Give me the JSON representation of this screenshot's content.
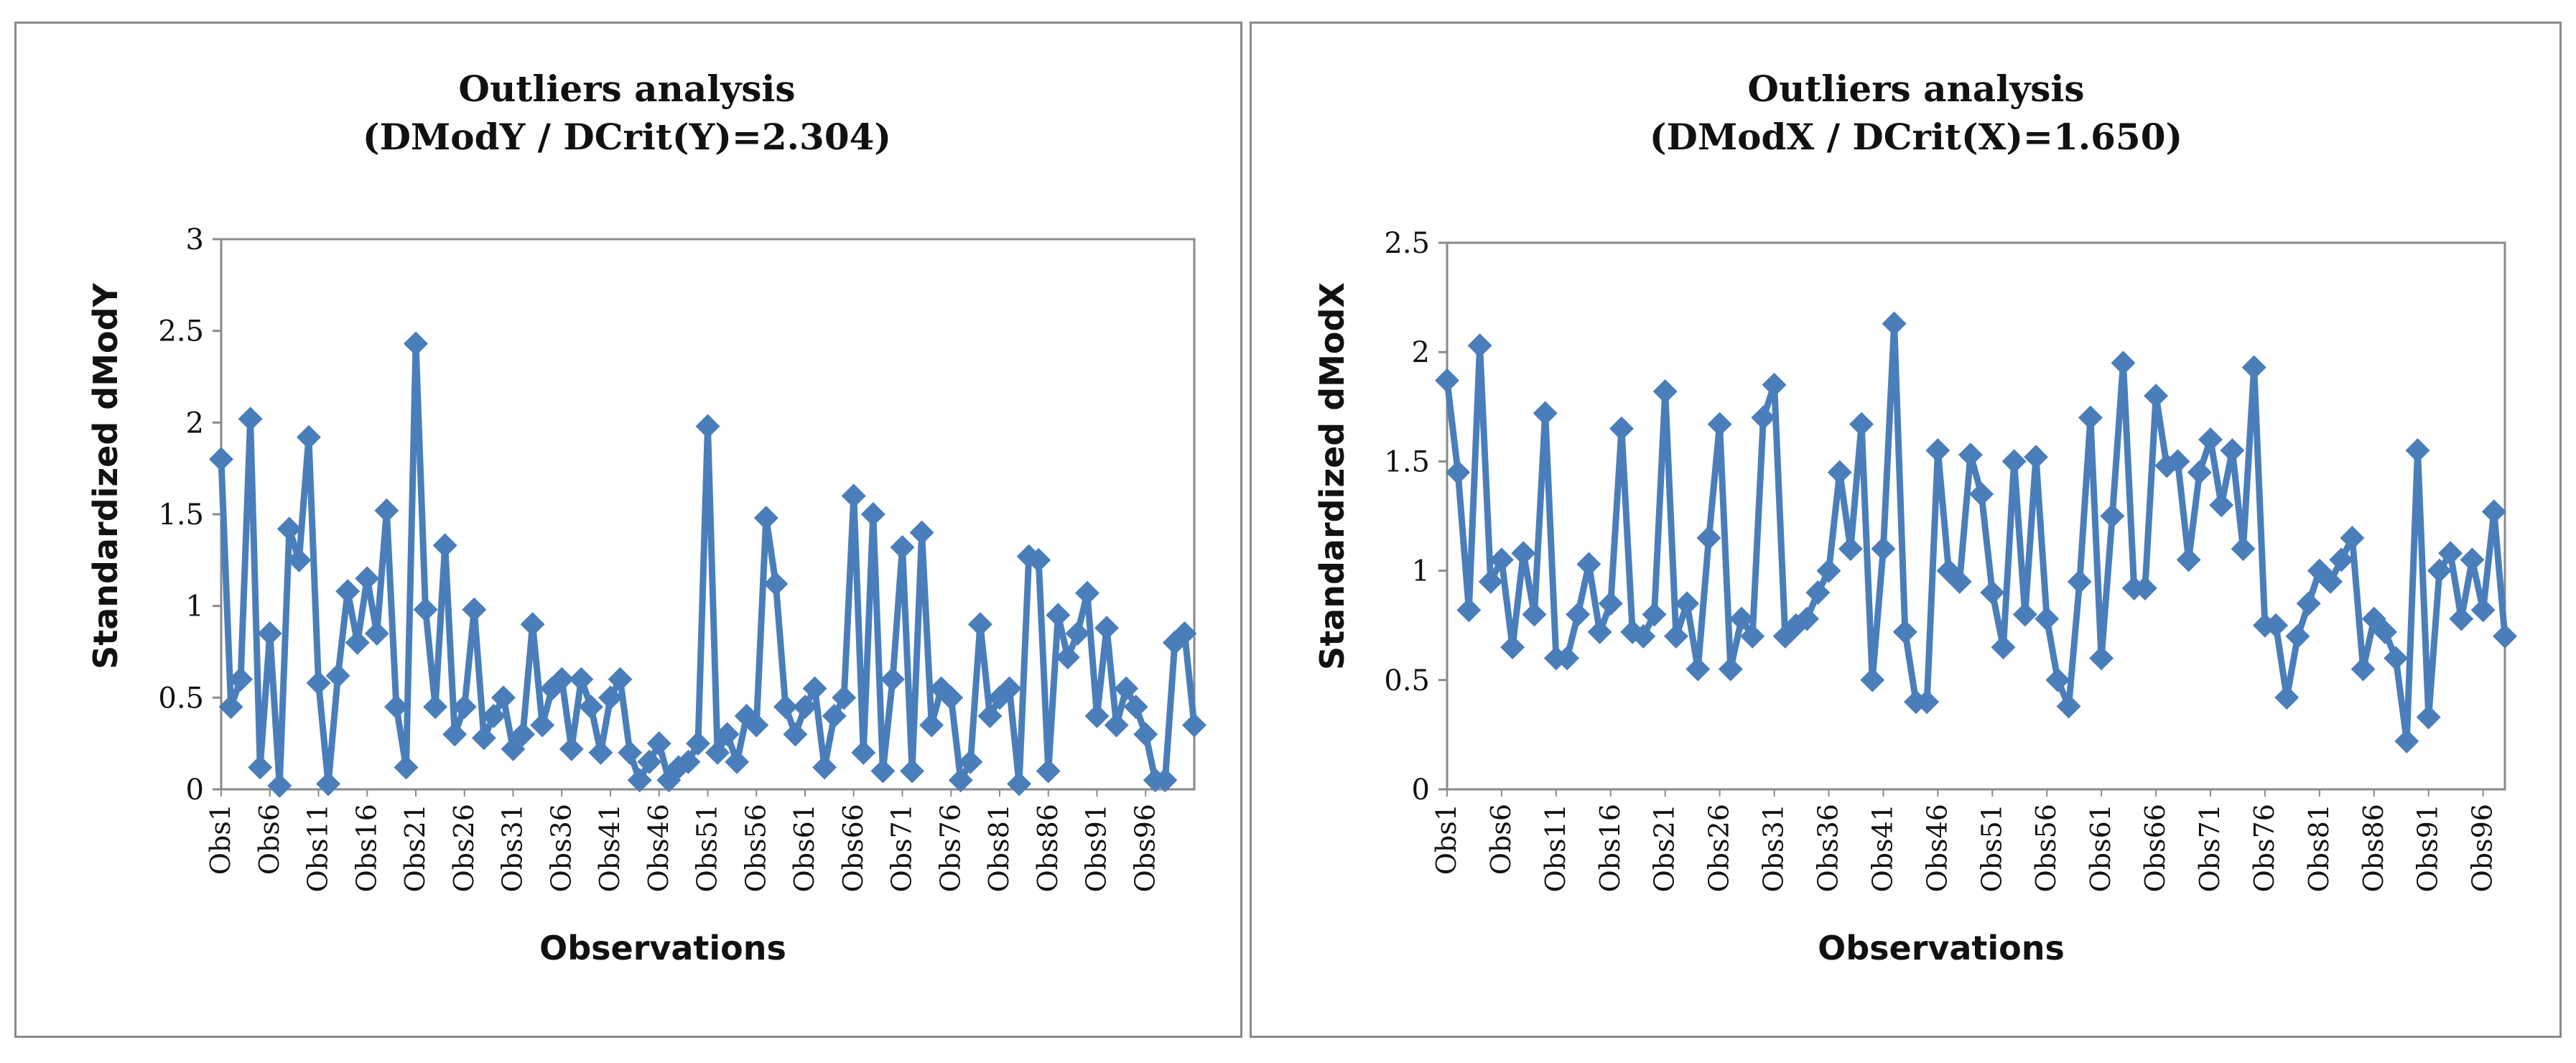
{
  "chart_data": [
    {
      "type": "line",
      "title": "Outliers analysis",
      "subtitle": "(DModY / DCrit(Y)=2.304)",
      "xlabel": "Observations",
      "ylabel": "Standardized dModY",
      "ylim": [
        0,
        3
      ],
      "yticks": [
        "0",
        "0.5",
        "1",
        "1.5",
        "2",
        "2.5",
        "3"
      ],
      "xtick_labels": [
        "Obs1",
        "Obs6",
        "Obs11",
        "Obs16",
        "Obs21",
        "Obs26",
        "Obs31",
        "Obs36",
        "Obs41",
        "Obs46",
        "Obs51",
        "Obs56",
        "Obs61",
        "Obs66",
        "Obs71",
        "Obs76",
        "Obs81",
        "Obs86",
        "Obs91",
        "Obs96"
      ],
      "series": [
        {
          "name": "Standardized dModY",
          "color": "#4a7ebb",
          "values": [
            1.8,
            0.45,
            0.6,
            2.02,
            0.12,
            0.85,
            0.02,
            1.42,
            1.25,
            1.92,
            0.58,
            0.03,
            0.62,
            1.08,
            0.8,
            1.15,
            0.85,
            1.52,
            0.45,
            0.12,
            2.43,
            0.98,
            0.45,
            1.33,
            0.3,
            0.45,
            0.98,
            0.28,
            0.4,
            0.5,
            0.22,
            0.3,
            0.9,
            0.35,
            0.55,
            0.6,
            0.22,
            0.6,
            0.45,
            0.2,
            0.5,
            0.6,
            0.2,
            0.05,
            0.15,
            0.25,
            0.05,
            0.12,
            0.15,
            0.25,
            1.98,
            0.2,
            0.3,
            0.15,
            0.4,
            0.35,
            1.48,
            1.12,
            0.45,
            0.3,
            0.45,
            0.55,
            0.12,
            0.4,
            0.5,
            1.6,
            0.2,
            1.5,
            0.1,
            0.6,
            1.32,
            0.1,
            1.4,
            0.35,
            0.55,
            0.5,
            0.05,
            0.15,
            0.9,
            0.4,
            0.5,
            0.55,
            0.03,
            1.27,
            1.25,
            0.1,
            0.95,
            0.72,
            0.85,
            1.07,
            0.4,
            0.88,
            0.35,
            0.55,
            0.45,
            0.3,
            0.05,
            0.05,
            0.8,
            0.85,
            0.35
          ]
        }
      ]
    },
    {
      "type": "line",
      "title": "Outliers analysis",
      "subtitle": "(DModX / DCrit(X)=1.650)",
      "xlabel": "Observations",
      "ylabel": "Standardized dModX",
      "ylim": [
        0,
        2.5
      ],
      "yticks": [
        "0",
        "0.5",
        "1",
        "1.5",
        "2",
        "2.5"
      ],
      "xtick_labels": [
        "Obs1",
        "Obs6",
        "Obs11",
        "Obs16",
        "Obs21",
        "Obs26",
        "Obs31",
        "Obs36",
        "Obs41",
        "Obs46",
        "Obs51",
        "Obs56",
        "Obs61",
        "Obs66",
        "Obs71",
        "Obs76",
        "Obs81",
        "Obs86",
        "Obs91",
        "Obs96"
      ],
      "series": [
        {
          "name": "Standardized dModX",
          "color": "#4a7ebb",
          "values": [
            1.87,
            1.45,
            0.82,
            2.03,
            0.95,
            1.05,
            0.65,
            1.08,
            0.8,
            1.72,
            0.6,
            0.6,
            0.8,
            1.03,
            0.72,
            0.85,
            1.65,
            0.72,
            0.7,
            0.8,
            1.82,
            0.7,
            0.85,
            0.55,
            1.15,
            1.67,
            0.55,
            0.78,
            0.7,
            1.7,
            1.85,
            0.7,
            0.75,
            0.78,
            0.9,
            1.0,
            1.45,
            1.1,
            1.67,
            0.5,
            1.1,
            2.13,
            0.72,
            0.4,
            0.4,
            1.55,
            1.0,
            0.95,
            1.53,
            1.35,
            0.9,
            0.65,
            1.5,
            0.8,
            1.52,
            0.78,
            0.5,
            0.38,
            0.95,
            1.7,
            0.6,
            1.25,
            1.95,
            0.92,
            0.92,
            1.8,
            1.48,
            1.5,
            1.05,
            1.45,
            1.6,
            1.3,
            1.55,
            1.1,
            1.93,
            0.75,
            0.75,
            0.42,
            0.7,
            0.85,
            1.0,
            0.95,
            1.05,
            1.15,
            0.55,
            0.78,
            0.72,
            0.6,
            0.22,
            1.55,
            0.33,
            1.0,
            1.08,
            0.78,
            1.05,
            0.82,
            1.27,
            0.7
          ]
        }
      ]
    }
  ]
}
